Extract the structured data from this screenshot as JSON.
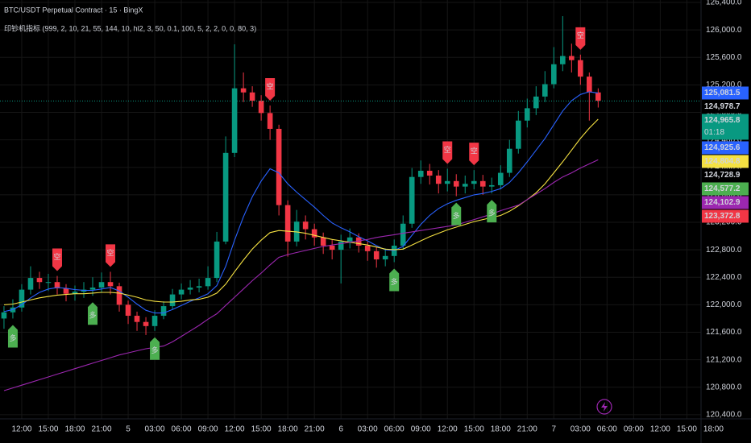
{
  "chart_data": {
    "type": "candlestick",
    "title": "BTC/USDT Perpetual Contract · 15 · BingX",
    "indicator": "印钞机指标 (999, 2, 10, 21, 55, 144, 10, hl2, 3, 50, 0.1, 100, 5, 2, 2, 0, 0, 80, 3)",
    "up_color": "#089981",
    "down_color": "#f23645",
    "grid": true,
    "open": [
      121800,
      121890,
      121960,
      122220,
      122390,
      122330,
      122330,
      122240,
      122160,
      122190,
      122220,
      122250,
      122330,
      122270,
      122000,
      121840,
      121750,
      121690,
      121840,
      121980,
      122150,
      122220,
      122250,
      122270,
      122390,
      122920,
      124210,
      125150,
      125090,
      124970,
      124790,
      124560,
      123450,
      122920,
      123210,
      123100,
      122980,
      122860,
      122800,
      122920,
      122980,
      122860,
      122780,
      122660,
      122710,
      122860,
      123180,
      123860,
      123950,
      123880,
      123760,
      123800,
      123720,
      123760,
      123800,
      123720,
      123740,
      123920,
      124270,
      124680,
      124860,
      125030,
      125210,
      125500,
      125620,
      125560,
      125320,
      125090
    ],
    "high": [
      121980,
      122080,
      122300,
      122560,
      122480,
      122450,
      122420,
      122300,
      122280,
      122330,
      122400,
      122470,
      122480,
      122320,
      122060,
      121900,
      121820,
      121920,
      122050,
      122230,
      122310,
      122360,
      122380,
      122560,
      123060,
      124450,
      125790,
      125380,
      125180,
      125050,
      124900,
      124620,
      123520,
      123380,
      123300,
      123180,
      123050,
      122950,
      123020,
      123110,
      123040,
      122920,
      122840,
      122820,
      122950,
      123300,
      123990,
      124100,
      124050,
      123960,
      123980,
      123900,
      123880,
      123960,
      123890,
      123850,
      124030,
      124400,
      124820,
      125000,
      125180,
      125400,
      125750,
      126200,
      125800,
      125640,
      125380,
      125150
    ],
    "low": [
      121650,
      121800,
      121900,
      122150,
      122230,
      122200,
      122150,
      122050,
      122060,
      122100,
      122130,
      122180,
      122150,
      121900,
      121720,
      121620,
      121560,
      121620,
      121790,
      121930,
      122080,
      122150,
      122180,
      122220,
      122330,
      122880,
      124150,
      124950,
      124880,
      124680,
      124400,
      123300,
      122700,
      122850,
      122950,
      122860,
      122740,
      122660,
      122310,
      122820,
      122760,
      122640,
      122540,
      122560,
      122620,
      122800,
      123120,
      123760,
      123750,
      123620,
      123650,
      123580,
      123620,
      123680,
      123600,
      123620,
      123680,
      123860,
      124200,
      124580,
      124760,
      124950,
      125150,
      125400,
      125380,
      125200,
      124680,
      124870
    ],
    "close": [
      121890,
      121960,
      122220,
      122390,
      122330,
      122330,
      122240,
      122160,
      122190,
      122220,
      122250,
      122330,
      122270,
      122000,
      121840,
      121750,
      121690,
      121840,
      121980,
      122150,
      122220,
      122250,
      122270,
      122390,
      122920,
      124210,
      125150,
      125090,
      124970,
      124790,
      124560,
      123450,
      122920,
      123210,
      123100,
      122980,
      122860,
      122800,
      122920,
      122980,
      122860,
      122780,
      122660,
      122710,
      122860,
      123180,
      123860,
      123950,
      123880,
      123760,
      123800,
      123720,
      123760,
      123800,
      123720,
      123740,
      123920,
      124270,
      124680,
      124860,
      125030,
      125210,
      125500,
      125620,
      125560,
      125320,
      125090,
      124970
    ],
    "moving_averages": [
      {
        "color": "#2962ff",
        "values": [
          121900,
          121930,
          122000,
          122100,
          122180,
          122230,
          122250,
          122240,
          122220,
          122210,
          122210,
          122230,
          122250,
          122200,
          122110,
          122010,
          121920,
          121880,
          121880,
          121930,
          121990,
          122050,
          122100,
          122160,
          122280,
          122560,
          122940,
          123280,
          123570,
          123800,
          123980,
          123920,
          123760,
          123640,
          123530,
          123420,
          123300,
          123190,
          123120,
          123060,
          122990,
          122930,
          122860,
          122800,
          122790,
          122850,
          123010,
          123170,
          123300,
          123400,
          123470,
          123520,
          123560,
          123600,
          123620,
          123650,
          123690,
          123780,
          123920,
          124080,
          124250,
          124420,
          124620,
          124820,
          124970,
          125060,
          125100,
          125080
        ]
      },
      {
        "color": "#f5e142",
        "values": [
          122000,
          122010,
          122040,
          122070,
          122100,
          122120,
          122140,
          122150,
          122160,
          122160,
          122170,
          122180,
          122180,
          122170,
          122140,
          122110,
          122070,
          122050,
          122040,
          122040,
          122050,
          122070,
          122080,
          122110,
          122170,
          122300,
          122480,
          122650,
          122810,
          122940,
          123050,
          123080,
          123070,
          123060,
          123040,
          123010,
          122980,
          122950,
          122930,
          122910,
          122890,
          122870,
          122840,
          122810,
          122800,
          122810,
          122870,
          122930,
          122990,
          123040,
          123090,
          123130,
          123170,
          123210,
          123240,
          123270,
          123300,
          123360,
          123440,
          123530,
          123630,
          123760,
          123920,
          124080,
          124250,
          124420,
          124570,
          124700
        ]
      },
      {
        "color": "#9c27b0",
        "values": [
          120750,
          120790,
          120830,
          120870,
          120910,
          120950,
          120990,
          121030,
          121070,
          121110,
          121150,
          121190,
          121230,
          121270,
          121300,
          121330,
          121360,
          121380,
          121400,
          121460,
          121540,
          121620,
          121700,
          121790,
          121870,
          121990,
          122110,
          122230,
          122350,
          122460,
          122580,
          122690,
          122730,
          122760,
          122790,
          122820,
          122850,
          122870,
          122890,
          122910,
          122930,
          122950,
          122980,
          123000,
          123020,
          123040,
          123060,
          123080,
          123100,
          123120,
          123140,
          123160,
          123200,
          123240,
          123280,
          123320,
          123370,
          123410,
          123450,
          123530,
          123610,
          123690,
          123780,
          123860,
          123920,
          123990,
          124050,
          124110
        ]
      }
    ],
    "signals": [
      {
        "index": 6,
        "label": "空",
        "color": "#f23645",
        "side": "above"
      },
      {
        "index": 12,
        "label": "空",
        "color": "#f23645",
        "side": "above"
      },
      {
        "index": 30,
        "label": "空",
        "color": "#f23645",
        "side": "above"
      },
      {
        "index": 50,
        "label": "空",
        "color": "#f23645",
        "side": "above"
      },
      {
        "index": 53,
        "label": "空",
        "color": "#f23645",
        "side": "above"
      },
      {
        "index": 65,
        "label": "空",
        "color": "#f23645",
        "side": "above"
      },
      {
        "index": 1,
        "label": "多",
        "color": "#4caf50",
        "side": "below"
      },
      {
        "index": 10,
        "label": "多",
        "color": "#4caf50",
        "side": "below"
      },
      {
        "index": 17,
        "label": "多",
        "color": "#4caf50",
        "side": "below"
      },
      {
        "index": 44,
        "label": "多",
        "color": "#4caf50",
        "side": "below"
      },
      {
        "index": 51,
        "label": "多",
        "color": "#4caf50",
        "side": "below"
      },
      {
        "index": 55,
        "label": "多",
        "color": "#4caf50",
        "side": "below"
      }
    ],
    "xlim": [
      -0.45,
      78.6
    ],
    "xticks": [
      {
        "value": 2,
        "label": "12:00"
      },
      {
        "value": 5,
        "label": "15:00"
      },
      {
        "value": 8,
        "label": "18:00"
      },
      {
        "value": 11,
        "label": "21:00"
      },
      {
        "value": 14,
        "label": "5"
      },
      {
        "value": 17,
        "label": "03:00"
      },
      {
        "value": 20,
        "label": "06:00"
      },
      {
        "value": 23,
        "label": "09:00"
      },
      {
        "value": 26,
        "label": "12:00"
      },
      {
        "value": 29,
        "label": "15:00"
      },
      {
        "value": 32,
        "label": "18:00"
      },
      {
        "value": 35,
        "label": "21:00"
      },
      {
        "value": 38,
        "label": "6"
      },
      {
        "value": 41,
        "label": "03:00"
      },
      {
        "value": 44,
        "label": "06:00"
      },
      {
        "value": 47,
        "label": "09:00"
      },
      {
        "value": 50,
        "label": "12:00"
      },
      {
        "value": 53,
        "label": "15:00"
      },
      {
        "value": 56,
        "label": "18:00"
      },
      {
        "value": 59,
        "label": "21:00"
      },
      {
        "value": 62,
        "label": "7"
      },
      {
        "value": 65,
        "label": "03:00"
      },
      {
        "value": 68,
        "label": "06:00"
      },
      {
        "value": 71,
        "label": "09:00"
      },
      {
        "value": 74,
        "label": "12:00"
      },
      {
        "value": 77,
        "label": "15:00"
      },
      {
        "value": 80,
        "label": "18:00"
      }
    ],
    "ylim": [
      120340,
      126435
    ],
    "yticks": [
      {
        "value": 120400,
        "label": "120,400.0"
      },
      {
        "value": 120800,
        "label": "120,800.0"
      },
      {
        "value": 121200,
        "label": "121,200.0"
      },
      {
        "value": 121600,
        "label": "121,600.0"
      },
      {
        "value": 122000,
        "label": "122,000.0"
      },
      {
        "value": 122400,
        "label": "122,400.0"
      },
      {
        "value": 122800,
        "label": "122,800.0"
      },
      {
        "value": 123200,
        "label": "123,200.0"
      },
      {
        "value": 123600,
        "label": "123,600.0"
      },
      {
        "value": 124000,
        "label": "124,000.0"
      },
      {
        "value": 124400,
        "label": "124,400.0"
      },
      {
        "value": 124800,
        "label": "124,800.0"
      },
      {
        "value": 125200,
        "label": "125,200.0"
      },
      {
        "value": 125600,
        "label": "125,600.0"
      },
      {
        "value": 126000,
        "label": "126,000.0"
      },
      {
        "value": 126400,
        "label": "126,400.0"
      }
    ],
    "price_labels": [
      {
        "value": 125081.5,
        "label": "125,081.5",
        "color": "#2962ff"
      },
      {
        "value": 124978.7,
        "label": "124,978.7",
        "color": "#000000"
      },
      {
        "value": 124965.8,
        "label": "124,965.8",
        "color": "#089981",
        "countdown": "01:18"
      },
      {
        "value": 124925.6,
        "label": "124,925.6",
        "color": "#2962ff"
      },
      {
        "value": 124804.8,
        "label": "124,804.8",
        "color": "#f5e142"
      },
      {
        "value": 124728.9,
        "label": "124,728.9",
        "color": "#000000"
      },
      {
        "value": 124577.2,
        "label": "124,577.2",
        "color": "#4caf50"
      },
      {
        "value": 124102.9,
        "label": "124,102.9",
        "color": "#9c27b0"
      },
      {
        "value": 123372.8,
        "label": "123,372.8",
        "color": "#f23645"
      }
    ]
  }
}
